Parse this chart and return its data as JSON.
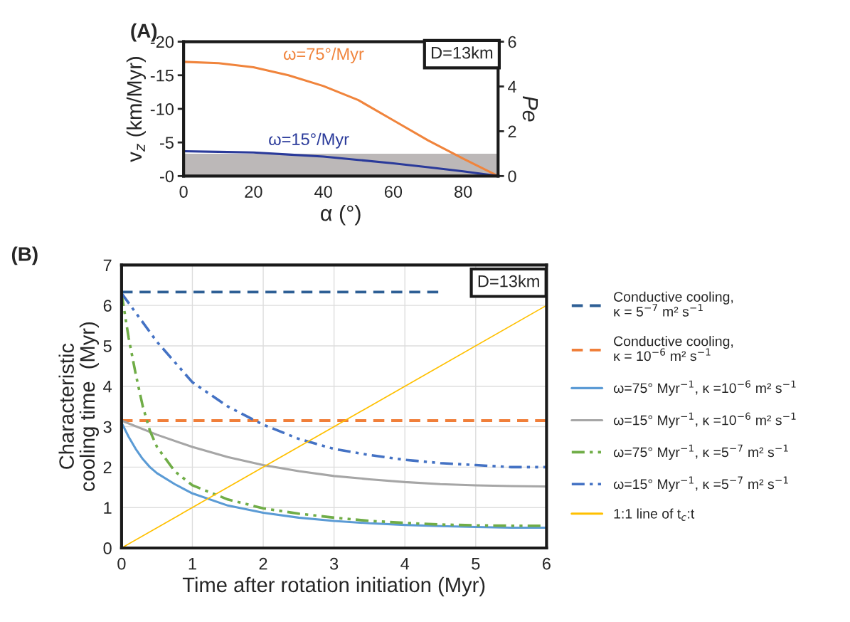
{
  "chart_data": [
    {
      "type": "line",
      "title": "(A)",
      "xlabel": "α (°)",
      "ylabel": "v$_{z}$ (km/Myr)",
      "y2label": "Pe",
      "xlim": [
        0,
        90
      ],
      "xticks": [
        0,
        20,
        40,
        60,
        80
      ],
      "ylim": [
        0,
        -20
      ],
      "yticks": [
        -20,
        -15,
        -10,
        -5,
        {
          "value": 0,
          "label": "-0"
        }
      ],
      "y2lim": [
        0,
        6
      ],
      "y2ticks": [
        0,
        2,
        4,
        6
      ],
      "grid": false,
      "legend": false,
      "bands": [
        {
          "axis": "y2",
          "from": 0,
          "to": 1,
          "color": "#bcb8b8"
        }
      ],
      "annotations": [
        "D=13km"
      ],
      "series": [
        {
          "name": "ω=75°/Myr",
          "color": "#f0843c",
          "x": [
            0,
            10,
            20,
            30,
            40,
            50,
            60,
            70,
            80,
            90
          ],
          "values": [
            -17,
            -16.8,
            -16.2,
            -15,
            -13.4,
            -11.3,
            -8.3,
            -5.3,
            -2.6,
            0
          ]
        },
        {
          "name": "ω=15°/Myr",
          "color": "#2a3a9a",
          "x": [
            0,
            10,
            20,
            30,
            40,
            50,
            60,
            70,
            80,
            90
          ],
          "values": [
            -3.7,
            -3.6,
            -3.5,
            -3.2,
            -2.9,
            -2.4,
            -1.9,
            -1.3,
            -0.7,
            0
          ]
        }
      ]
    },
    {
      "type": "line",
      "title": "(B)",
      "xlabel": "Time after rotation initiation (Myr)",
      "ylabel": "Characteristic\ncooling time  (Myr)",
      "xlim": [
        0,
        6
      ],
      "xticks": [
        0,
        1,
        2,
        3,
        4,
        5,
        6
      ],
      "ylim": [
        0,
        7
      ],
      "yticks": [
        0,
        1,
        2,
        3,
        4,
        5,
        6,
        7
      ],
      "grid": true,
      "legend": "right",
      "annotations": [
        "D=13km"
      ],
      "series": [
        {
          "name": "Conductive cooling,\nκ = 5$^{−7}$ m² s$^{−1}$",
          "color": "#2e5f95",
          "line_style": "dashed",
          "x": [
            0,
            4.5
          ],
          "values": [
            6.33,
            6.33
          ]
        },
        {
          "name": "Conductive cooling,\nκ = 10$^{−6}$ m² s$^{−1}$",
          "color": "#f07f3a",
          "line_style": "dashed",
          "x": [
            0,
            6
          ],
          "values": [
            3.15,
            3.15
          ]
        },
        {
          "name": "ω=75° Myr$^{−1}$, κ =10$^{−6}$ m² s$^{−1}$",
          "color": "#5b9bd5",
          "line_style": "solid",
          "x": [
            0,
            0.1,
            0.2,
            0.3,
            0.4,
            0.5,
            0.75,
            1,
            1.5,
            2,
            2.5,
            3,
            3.5,
            4,
            4.5,
            5,
            5.5,
            6
          ],
          "values": [
            3.1,
            2.75,
            2.45,
            2.2,
            2.0,
            1.85,
            1.58,
            1.35,
            1.05,
            0.87,
            0.75,
            0.67,
            0.61,
            0.57,
            0.54,
            0.52,
            0.5,
            0.5
          ]
        },
        {
          "name": "ω=15° Myr$^{−1}$, κ =10$^{−6}$ m² s$^{−1}$",
          "color": "#a6a6a6",
          "line_style": "solid",
          "x": [
            0,
            0.5,
            1,
            1.5,
            2,
            2.5,
            3,
            3.5,
            4,
            4.5,
            5,
            5.5,
            6
          ],
          "values": [
            3.15,
            2.8,
            2.5,
            2.25,
            2.05,
            1.9,
            1.78,
            1.7,
            1.63,
            1.58,
            1.55,
            1.53,
            1.52
          ]
        },
        {
          "name": "ω=75° Myr$^{−1}$, κ =5$^{−7}$ m² s$^{−1}$",
          "color": "#70ad47",
          "line_style": "dashdot",
          "x": [
            0,
            0.1,
            0.2,
            0.3,
            0.4,
            0.5,
            0.75,
            1,
            1.5,
            2,
            2.5,
            3,
            3.5,
            4,
            4.5,
            5,
            5.5,
            6
          ],
          "values": [
            6.3,
            5.2,
            4.3,
            3.5,
            2.9,
            2.5,
            1.9,
            1.55,
            1.2,
            0.98,
            0.85,
            0.75,
            0.67,
            0.62,
            0.58,
            0.56,
            0.55,
            0.55
          ]
        },
        {
          "name": "ω=15° Myr$^{−1}$, κ =5$^{−7}$ m² s$^{−1}$",
          "color": "#4472c4",
          "line_style": "dashdot",
          "x": [
            0,
            0.25,
            0.5,
            0.75,
            1,
            1.5,
            2,
            2.5,
            3,
            3.5,
            4,
            4.5,
            5,
            5.5,
            6
          ],
          "values": [
            6.3,
            5.7,
            5.1,
            4.6,
            4.1,
            3.5,
            3.05,
            2.7,
            2.45,
            2.3,
            2.18,
            2.1,
            2.05,
            2.0,
            2.0
          ]
        },
        {
          "name": "1:1 line of t$_{c}$:t",
          "color": "#ffc000",
          "line_style": "solid",
          "x": [
            0,
            6
          ],
          "values": [
            0,
            6
          ]
        }
      ]
    }
  ]
}
